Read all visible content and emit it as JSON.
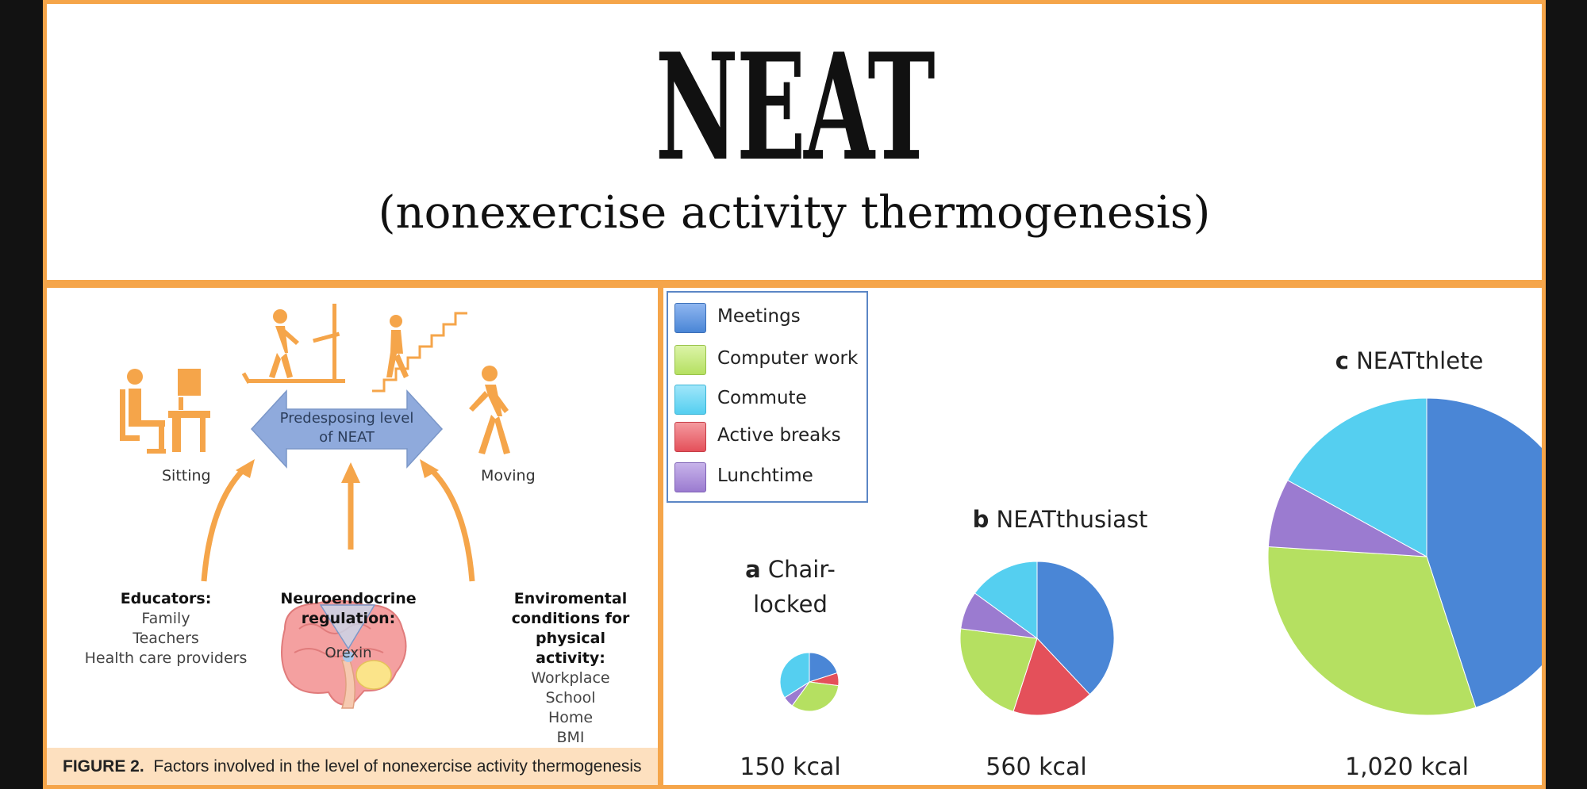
{
  "title": {
    "main": "NEAT",
    "subtitle": "(nonexercise activity thermogenesis)"
  },
  "figure": {
    "center_arrow": [
      "Predesposing level",
      "of  NEAT"
    ],
    "sitting": "Sitting",
    "moving": "Moving",
    "orexin": "Orexin",
    "educators": {
      "heading": "Educators:",
      "items": [
        "Family",
        "Teachers",
        "Health care providers"
      ]
    },
    "neuro": {
      "heading_lines": [
        "Neuroendocrine",
        "regulation:"
      ]
    },
    "environment": {
      "heading_lines": [
        "Enviromental",
        "conditions for",
        "physical activity:"
      ],
      "items": [
        "Workplace",
        "School",
        "Home",
        "BMI"
      ]
    },
    "caption_label": "FIGURE 2.",
    "caption_text": "Factors involved in the level of nonexercise activity thermogenesis"
  },
  "colors": {
    "accent_orange": "#f5a54a",
    "meetings": "#4a86d6",
    "computer_work": "#b5e061",
    "commute": "#55cff0",
    "active_breaks": "#e4505a",
    "lunchtime": "#9b7bd0"
  },
  "chart_data": {
    "type": "pie",
    "legend": [
      "Meetings",
      "Computer work",
      "Commute",
      "Active breaks",
      "Lunchtime"
    ],
    "legend_position": "top-left",
    "pies": [
      {
        "letter": "a",
        "name_lines": [
          "Chair-",
          "locked"
        ],
        "total": "150 kcal",
        "values": {
          "Meetings": 20,
          "Active breaks": 7,
          "Computer work": 33,
          "Lunchtime": 6,
          "Commute": 34
        }
      },
      {
        "letter": "b",
        "name": "NEATthusiast",
        "total": "560 kcal",
        "values": {
          "Meetings": 38,
          "Active breaks": 17,
          "Computer work": 22,
          "Lunchtime": 8,
          "Commute": 15
        }
      },
      {
        "letter": "c",
        "name": "NEATthlete",
        "total": "1,020 kcal",
        "values": {
          "Meetings": 45,
          "Computer work": 31,
          "Lunchtime": 7,
          "Commute": 17
        }
      }
    ]
  }
}
